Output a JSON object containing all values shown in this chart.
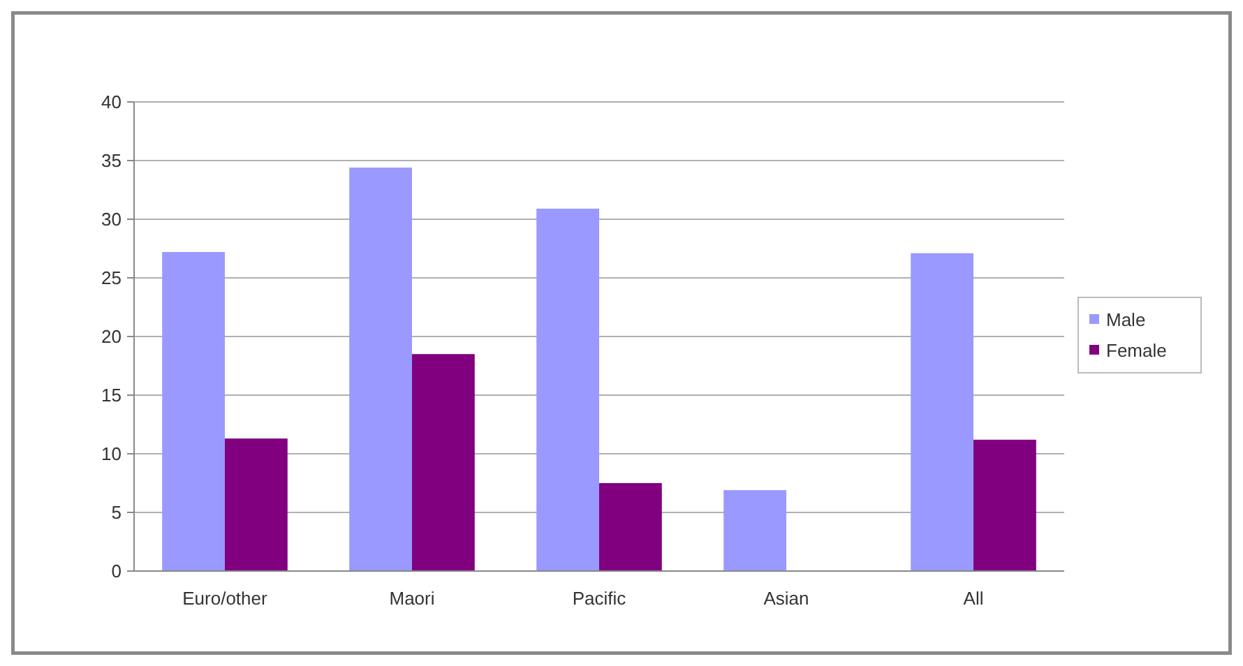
{
  "chart_data": {
    "type": "bar",
    "categories": [
      "Euro/other",
      "Maori",
      "Pacific",
      "Asian",
      "All"
    ],
    "series": [
      {
        "name": "Male",
        "color": "#9999ff",
        "values": [
          27.2,
          34.4,
          30.9,
          6.9,
          27.1
        ]
      },
      {
        "name": "Female",
        "color": "#800080",
        "values": [
          11.3,
          18.5,
          7.5,
          null,
          11.2
        ]
      }
    ],
    "ylim": [
      0,
      40
    ],
    "yticks": [
      0,
      5,
      10,
      15,
      20,
      25,
      30,
      35,
      40
    ],
    "grid": "y",
    "legend": "right"
  }
}
